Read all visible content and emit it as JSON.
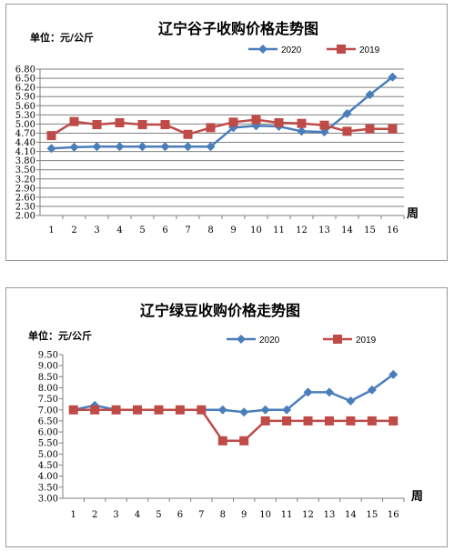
{
  "chart_data": [
    {
      "type": "line",
      "title": "辽宁谷子收购价格走势图",
      "unit_label": "单位：元/公斤",
      "xlabel": "周",
      "categories": [
        "1",
        "2",
        "3",
        "4",
        "5",
        "6",
        "7",
        "8",
        "9",
        "10",
        "11",
        "12",
        "13",
        "14",
        "15",
        "16"
      ],
      "yticks": [
        "6.80",
        "6.50",
        "6.20",
        "5.90",
        "5.60",
        "5.30",
        "5.00",
        "4.70",
        "4.40",
        "4.10",
        "3.80",
        "3.50",
        "3.20",
        "2.90",
        "2.60",
        "2.30",
        "2.00"
      ],
      "ylim": [
        2.0,
        6.8
      ],
      "legend_position": "top-right",
      "grid": true,
      "series": [
        {
          "name": "2020",
          "color": "#4a7ebb",
          "marker": "diamond",
          "values": [
            4.2,
            4.24,
            4.26,
            4.26,
            4.26,
            4.26,
            4.26,
            4.26,
            4.88,
            4.94,
            4.92,
            4.76,
            4.74,
            5.34,
            5.96,
            6.54
          ]
        },
        {
          "name": "2019",
          "color": "#be4b48",
          "marker": "square",
          "values": [
            4.62,
            5.08,
            4.98,
            5.04,
            4.98,
            4.98,
            4.66,
            4.88,
            5.06,
            5.14,
            5.04,
            5.02,
            4.96,
            4.76,
            4.84,
            4.84
          ]
        }
      ]
    },
    {
      "type": "line",
      "title": "辽宁绿豆收购价格走势图",
      "unit_label": "单位：元/公斤",
      "xlabel": "周",
      "categories": [
        "1",
        "2",
        "3",
        "4",
        "5",
        "6",
        "7",
        "8",
        "9",
        "10",
        "11",
        "12",
        "13",
        "14",
        "15",
        "16"
      ],
      "yticks": [
        "9.50",
        "9.00",
        "8.50",
        "8.00",
        "7.50",
        "7.00",
        "6.50",
        "6.00",
        "5.50",
        "5.00",
        "4.50",
        "4.00",
        "3.50",
        "3.00"
      ],
      "ylim": [
        3.0,
        9.5
      ],
      "legend_position": "top-right",
      "grid": false,
      "series": [
        {
          "name": "2020",
          "color": "#4a7ebb",
          "marker": "diamond",
          "values": [
            7.0,
            7.2,
            7.0,
            7.0,
            7.0,
            7.0,
            7.0,
            7.0,
            6.9,
            7.0,
            7.0,
            7.8,
            7.8,
            7.4,
            7.9,
            8.6
          ]
        },
        {
          "name": "2019",
          "color": "#be4b48",
          "marker": "square",
          "values": [
            7.0,
            7.0,
            7.0,
            7.0,
            7.0,
            7.0,
            7.0,
            5.6,
            5.6,
            6.5,
            6.5,
            6.5,
            6.5,
            6.5,
            6.5,
            6.5
          ]
        }
      ]
    }
  ]
}
